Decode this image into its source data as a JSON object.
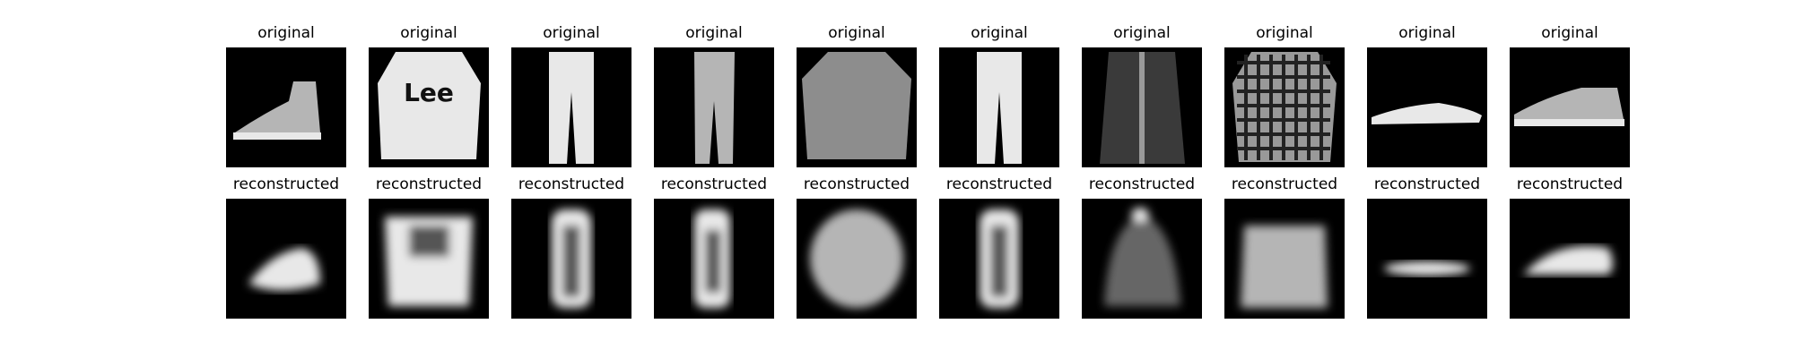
{
  "figure": {
    "row_titles": {
      "original": "original",
      "reconstructed": "reconstructed"
    },
    "items": [
      {
        "kind": "ankle-boot"
      },
      {
        "kind": "sweater-with-logo"
      },
      {
        "kind": "trousers"
      },
      {
        "kind": "trousers-dark"
      },
      {
        "kind": "shirt"
      },
      {
        "kind": "trousers-light"
      },
      {
        "kind": "coat-dark"
      },
      {
        "kind": "plaid-shirt"
      },
      {
        "kind": "sandal"
      },
      {
        "kind": "sneaker"
      }
    ]
  }
}
